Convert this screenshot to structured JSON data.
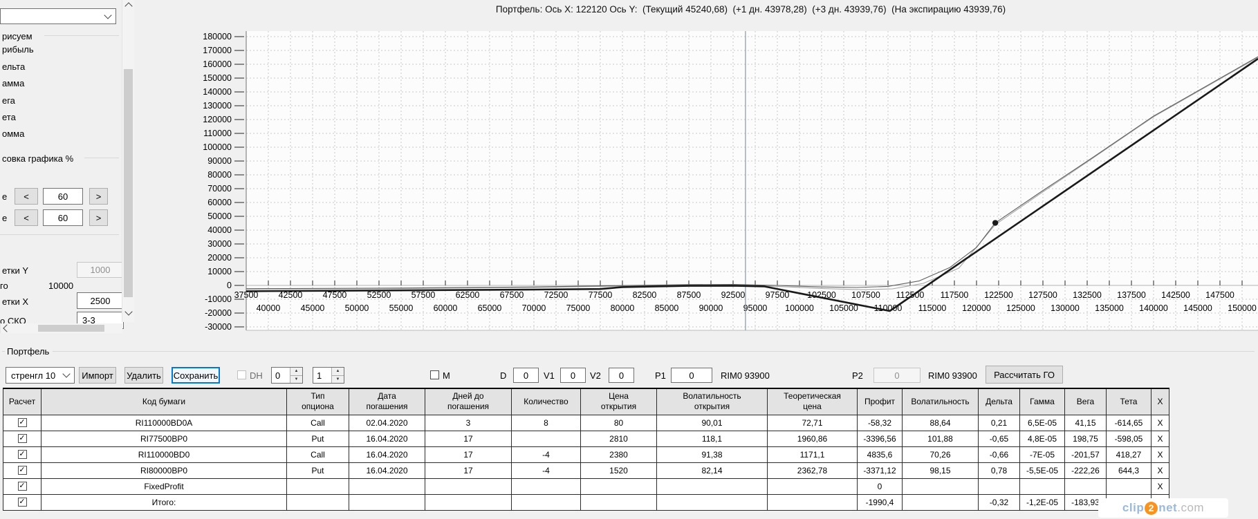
{
  "chart_title": "Портфель: Ось X: 122120 Ось Y:  (Текущий 45240,68)  (+1 дн. 43978,28)  (+3 дн. 43939,76)  (На экспирацию 43939,76)",
  "sidebar": {
    "combo_value": "",
    "draw_group": "рисуем",
    "items": [
      "рибыль",
      "ельта",
      "амма",
      "ега",
      "ета",
      "омма"
    ],
    "scale_group": "совка графика %",
    "dec": "<",
    "inc": ">",
    "row1_prefix": "е",
    "row1_value": "60",
    "row2_prefix": "е",
    "row2_value": "60",
    "grid_y_label": "етки Y",
    "grid_y_value": "1000",
    "total_label": "го",
    "total_value": "10000",
    "grid_x_label": "етки X",
    "grid_x_value": "2500",
    "sko_label": "о СКО",
    "sko_value": "3-3"
  },
  "portfolio": {
    "group_label": "Портфель",
    "strategy_value": "стренгл 10",
    "import_label": "Импорт",
    "delete_label": "Удалить",
    "save_label": "Сохранить",
    "dh_label": "DH",
    "spin1_value": "0",
    "spin2_value": "1",
    "m_label": "М",
    "d_label": "D",
    "d_value": "0",
    "v1_label": "V1",
    "v1_value": "0",
    "v2_label": "V2",
    "v2_value": "0",
    "p1_label": "P1",
    "p1_value": "0",
    "rim1": "RIM0 93900",
    "p2_label": "P2",
    "p2_value": "0",
    "rim2": "RIM0 93900",
    "calc_go_label": "Рассчитать ГО"
  },
  "table": {
    "headers": [
      "Расчет",
      "Код бумаги",
      "Тип\nопциона",
      "Дата\nпогашения",
      "Дней до\nпогашения",
      "Количество",
      "Цена\nоткрытия",
      "Волатильность\nоткрытия",
      "Теоретическая\nцена",
      "Профит",
      "Волатильность",
      "Дельта",
      "Гамма",
      "Вега",
      "Тета",
      "X"
    ],
    "x_label": "X",
    "rows": [
      {
        "checked": true,
        "cells": [
          "RI110000BD0A",
          "Call",
          "02.04.2020",
          "3",
          "8",
          "80",
          "90,01",
          "72,71",
          "-58,32",
          "88,64",
          "0,21",
          "6,5E-05",
          "41,15",
          "-614,65"
        ],
        "styles": {
          "8": "neg"
        }
      },
      {
        "checked": true,
        "cells": [
          "RI77500BP0",
          "Put",
          "16.04.2020",
          "17",
          "4",
          "2810",
          "118,1",
          "1960,86",
          "-3396,56",
          "101,88",
          "-0,65",
          "4,8E-05",
          "198,75",
          "-598,05"
        ],
        "styles": {
          "4": "sel",
          "8": "neg"
        }
      },
      {
        "checked": true,
        "cells": [
          "RI110000BD0",
          "Call",
          "16.04.2020",
          "17",
          "-4",
          "2380",
          "91,38",
          "1171,1",
          "4835,6",
          "70,26",
          "-0,66",
          "-7E-05",
          "-201,57",
          "418,27"
        ],
        "styles": {
          "8": "pos-c"
        }
      },
      {
        "checked": true,
        "cells": [
          "RI80000BP0",
          "Put",
          "16.04.2020",
          "17",
          "-4",
          "1520",
          "82,14",
          "2362,78",
          "-3371,12",
          "98,15",
          "0,78",
          "-5,5E-05",
          "-222,26",
          "644,3"
        ],
        "styles": {
          "8": "neg"
        }
      },
      {
        "checked": true,
        "cells": [
          "FixedProfit",
          "",
          "",
          "",
          "",
          "",
          "",
          "",
          "0",
          "",
          "",
          "",
          "",
          ""
        ],
        "styles": {}
      },
      {
        "checked": true,
        "cells": [
          "Итого:",
          "",
          "",
          "",
          "",
          "",
          "",
          "",
          "-1990,4",
          "",
          "-0,32",
          "-1,2E-05",
          "-183,93",
          "-150,13"
        ],
        "styles": {
          "8": "neg"
        }
      }
    ]
  },
  "watermark": {
    "clip": "clip",
    "two": "2",
    "net": "net",
    "com": ".com"
  },
  "chart_data": {
    "type": "line",
    "title": "Портфель: Ось X: 122120 Ось Y: (Текущий 45240,68) (+1 дн. 43978,28) (+3 дн. 43939,76) (На экспирацию 43939,76)",
    "x_axis": {
      "min": 37500,
      "max": 151800,
      "grid_step": 2500,
      "label_step": 5000,
      "label_row1_start": 37500,
      "label_row1_end": 147500,
      "label_row2_start": 40000,
      "label_row2_end": 150000
    },
    "y_axis": {
      "min": -30000,
      "max": 180000,
      "tick_step": 10000
    },
    "current_price_line_x": 93900,
    "marker": {
      "x": 122120,
      "y": 45240
    },
    "series": [
      {
        "name": "На экспирацию",
        "color": "#1a1a1a",
        "width": 2.6,
        "points": [
          [
            37500,
            -4200
          ],
          [
            70000,
            -3000
          ],
          [
            77500,
            -2600
          ],
          [
            80000,
            -1200
          ],
          [
            87500,
            -300
          ],
          [
            92500,
            -200
          ],
          [
            96000,
            -700
          ],
          [
            110200,
            -18500
          ],
          [
            151800,
            164000
          ]
        ]
      },
      {
        "name": "Текущий",
        "color": "#606060",
        "width": 1.1,
        "points": [
          [
            37500,
            -2400
          ],
          [
            55000,
            -1900
          ],
          [
            70000,
            -1100
          ],
          [
            80000,
            -100
          ],
          [
            87500,
            600
          ],
          [
            92500,
            700
          ],
          [
            97500,
            0
          ],
          [
            102500,
            -1100
          ],
          [
            106500,
            -1500
          ],
          [
            110000,
            -700
          ],
          [
            113500,
            3200
          ],
          [
            117000,
            13000
          ],
          [
            120000,
            27500
          ],
          [
            122120,
            45240
          ],
          [
            127000,
            66500
          ],
          [
            133000,
            92000
          ],
          [
            140000,
            122500
          ],
          [
            151800,
            165500
          ]
        ]
      },
      {
        "name": "+1 дн / +3 дн",
        "color": "#a6a6a6",
        "width": 1.1,
        "points": [
          [
            37500,
            -2700
          ],
          [
            55000,
            -2200
          ],
          [
            70000,
            -1400
          ],
          [
            80000,
            -500
          ],
          [
            87500,
            200
          ],
          [
            92500,
            300
          ],
          [
            97500,
            -700
          ],
          [
            102500,
            -2200
          ],
          [
            107000,
            -3100
          ],
          [
            110500,
            -2500
          ],
          [
            114000,
            1500
          ],
          [
            118000,
            12500
          ],
          [
            122120,
            43978
          ],
          [
            127000,
            65500
          ],
          [
            133000,
            91500
          ],
          [
            140000,
            122000
          ],
          [
            151800,
            165000
          ]
        ]
      }
    ],
    "grid": true,
    "legend_position": "none"
  }
}
